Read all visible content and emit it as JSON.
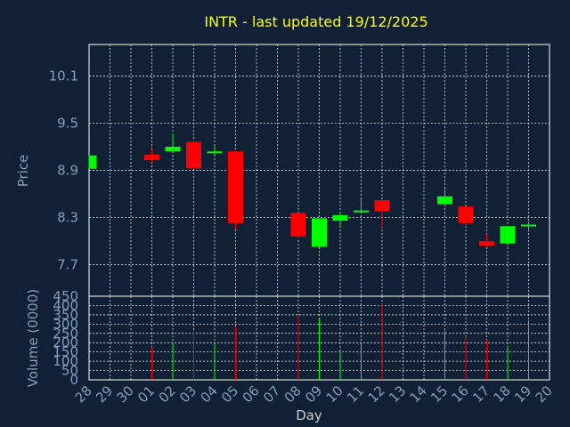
{
  "chart_data": {
    "type": "candlestick",
    "title": "INTR - last updated 19/12/2025",
    "days": [
      "28",
      "29",
      "30",
      "01",
      "02",
      "03",
      "04",
      "05",
      "06",
      "07",
      "08",
      "09",
      "10",
      "11",
      "12",
      "13",
      "14",
      "15",
      "16",
      "17",
      "18",
      "19",
      "20"
    ],
    "price": {
      "ylabel": "Price",
      "yticks": [
        "10.1",
        "9.5",
        "8.9",
        "8.3",
        "7.7"
      ],
      "ylim": [
        7.3,
        10.5
      ],
      "candles": [
        {
          "day": "28",
          "open": 8.92,
          "close": 9.09,
          "high": 9.09,
          "low": 8.92
        },
        {
          "day": "01",
          "open": 9.1,
          "close": 9.03,
          "high": 9.17,
          "low": 9.0
        },
        {
          "day": "02",
          "open": 9.14,
          "close": 9.2,
          "high": 9.37,
          "low": 9.14
        },
        {
          "day": "03",
          "open": 9.26,
          "close": 8.93,
          "high": 9.28,
          "low": 8.93
        },
        {
          "day": "04",
          "open": 9.12,
          "close": 9.14,
          "high": 9.21,
          "low": 9.1
        },
        {
          "day": "05",
          "open": 9.14,
          "close": 8.23,
          "high": 9.14,
          "low": 8.15
        },
        {
          "day": "08",
          "open": 8.36,
          "close": 8.06,
          "high": 8.36,
          "low": 8.03
        },
        {
          "day": "09",
          "open": 7.93,
          "close": 8.29,
          "high": 8.29,
          "low": 7.9
        },
        {
          "day": "10",
          "open": 8.26,
          "close": 8.33,
          "high": 8.37,
          "low": 8.18
        },
        {
          "day": "11",
          "open": 8.37,
          "close": 8.39,
          "high": 8.53,
          "low": 8.37
        },
        {
          "day": "12",
          "open": 8.52,
          "close": 8.38,
          "high": 8.52,
          "low": 8.18
        },
        {
          "day": "15",
          "open": 8.47,
          "close": 8.57,
          "high": 8.67,
          "low": 8.44
        },
        {
          "day": "16",
          "open": 8.44,
          "close": 8.23,
          "high": 8.44,
          "low": 8.2
        },
        {
          "day": "17",
          "open": 8.0,
          "close": 7.94,
          "high": 8.09,
          "low": 7.93
        },
        {
          "day": "18",
          "open": 7.97,
          "close": 8.19,
          "high": 8.19,
          "low": 7.94
        },
        {
          "day": "19",
          "open": 8.19,
          "close": 8.21,
          "high": 8.25,
          "low": 8.12
        }
      ]
    },
    "volume": {
      "ylabel": "Volume (0000)",
      "yticks": [
        "450",
        "400",
        "350",
        "300",
        "250",
        "200",
        "150",
        "100",
        "50",
        "0"
      ],
      "ylim": [
        0,
        450
      ],
      "bars": [
        {
          "day": "01",
          "value": 175,
          "direction": "down"
        },
        {
          "day": "02",
          "value": 200,
          "direction": "up"
        },
        {
          "day": "03",
          "value": 270,
          "direction": "down"
        },
        {
          "day": "04",
          "value": 195,
          "direction": "up"
        },
        {
          "day": "05",
          "value": 285,
          "direction": "down"
        },
        {
          "day": "08",
          "value": 350,
          "direction": "down"
        },
        {
          "day": "09",
          "value": 330,
          "direction": "up"
        },
        {
          "day": "10",
          "value": 150,
          "direction": "up"
        },
        {
          "day": "11",
          "value": 195,
          "direction": "up"
        },
        {
          "day": "12",
          "value": 410,
          "direction": "down"
        },
        {
          "day": "15",
          "value": 265,
          "direction": "up"
        },
        {
          "day": "16",
          "value": 225,
          "direction": "down"
        },
        {
          "day": "17",
          "value": 215,
          "direction": "down"
        },
        {
          "day": "18",
          "value": 185,
          "direction": "up"
        },
        {
          "day": "19",
          "value": 320,
          "direction": "up"
        }
      ]
    },
    "xlabel": "Day",
    "grid": true,
    "colors": {
      "background": "#112034",
      "up": "#00ff00",
      "down": "#ff0000",
      "grid": "#ffffff",
      "axis_text": "#7f9fc0",
      "title": "#ffff00"
    }
  }
}
